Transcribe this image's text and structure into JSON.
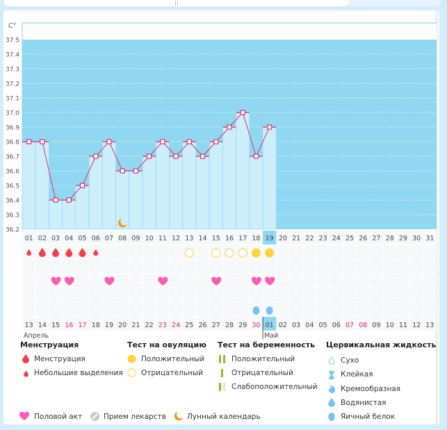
{
  "chart_data": {
    "type": "bar",
    "title": "",
    "ylabel": "C°",
    "xlabel": "",
    "ylim": [
      36.2,
      37.5
    ],
    "y_ticks": [
      "37.5",
      "37.4",
      "37.3",
      "37.2",
      "37.1",
      "37.0",
      "36.9",
      "36.8",
      "36.7",
      "36.6",
      "36.5",
      "36.4",
      "36.3",
      "36.2"
    ],
    "cycle_days": [
      "01",
      "02",
      "03",
      "04",
      "05",
      "06",
      "07",
      "08",
      "09",
      "10",
      "11",
      "12",
      "13",
      "14",
      "15",
      "16",
      "17",
      "18",
      "19",
      "20",
      "21",
      "22",
      "23",
      "24",
      "25",
      "26",
      "27",
      "28",
      "29",
      "30",
      "31"
    ],
    "current_day": "19",
    "temperatures": [
      36.8,
      36.8,
      36.4,
      36.4,
      36.5,
      36.7,
      36.8,
      36.6,
      36.6,
      36.7,
      36.8,
      36.7,
      36.8,
      36.7,
      36.8,
      36.9,
      37.0,
      36.7,
      36.9
    ],
    "calendar_dates": [
      "13",
      "14",
      "15",
      "16",
      "17",
      "18",
      "19",
      "20",
      "21",
      "22",
      "23",
      "24",
      "25",
      "26",
      "27",
      "28",
      "29",
      "30",
      "01",
      "02",
      "03",
      "04",
      "05",
      "06",
      "07",
      "08",
      "09",
      "10",
      "11",
      "12",
      "13"
    ],
    "weekend_indices": [
      3,
      4,
      10,
      11,
      17,
      24,
      25
    ],
    "today_index": 18,
    "months": [
      {
        "label": "Апрель",
        "start": 0
      },
      {
        "label": "Май",
        "start": 18
      }
    ],
    "moon_day_index": 7,
    "menstruation": {
      "heavy": [
        1,
        2,
        3,
        4
      ],
      "light": [
        0,
        5
      ]
    },
    "ovulation_test": {
      "positive": [
        17,
        18
      ],
      "negative": [
        12,
        14,
        15,
        16
      ]
    },
    "intercourse": [
      2,
      3,
      6,
      10,
      14,
      17,
      18
    ],
    "cervical_fluid_egg_white": [
      17,
      18
    ]
  },
  "legend": {
    "menstruation": {
      "title": "Менструация",
      "items": [
        "Менструация",
        "Небольшие выделения"
      ]
    },
    "ovulation": {
      "title": "Тест на овуляцию",
      "items": [
        "Положительный",
        "Отрицательный"
      ]
    },
    "pregnancy": {
      "title": "Тест на беременность",
      "items": [
        "Положительный",
        "Отрицательный",
        "Слабоположительный"
      ]
    },
    "cervical": {
      "title": "Цервикальная жидкость",
      "items": [
        "Сухо",
        "Клейкая",
        "Кремообразная",
        "Водянистая",
        "Яичный белок"
      ]
    },
    "other": [
      "Половой акт",
      "Прием лекарств",
      "Лунный календарь"
    ]
  },
  "colors": {
    "plot_bg": "#90d8f2",
    "bar": "#cdeefb",
    "line": "#d6336c",
    "menses": "#f0414e",
    "ovu": "#ffd33d",
    "heart": "#ff5cb5",
    "fluid": "#78c2ee",
    "preg": "#8db82a",
    "moon": "#f39a1e",
    "weekend": "#d6336c"
  }
}
